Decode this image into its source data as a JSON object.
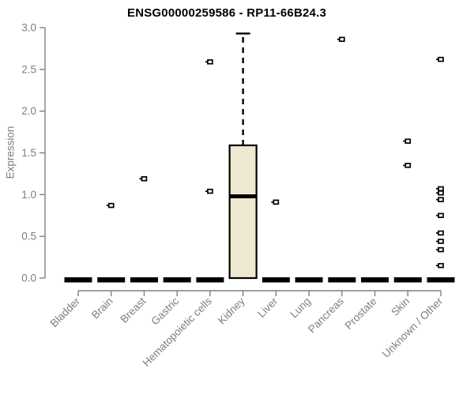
{
  "chart_data": {
    "type": "boxplot",
    "title": "ENSG00000259586 - RP11-66B24.3",
    "ylabel": "Expression",
    "xlabel": "",
    "ylim": [
      0,
      3
    ],
    "y_ticks": [
      "0.0",
      "0.5",
      "1.0",
      "1.5",
      "2.0",
      "2.5",
      "3.0"
    ],
    "grid": "off",
    "categories": [
      "Bladder",
      "Brain",
      "Breast",
      "Gastric",
      "Hematopoietic cells",
      "Kidney",
      "Liver",
      "Lung",
      "Pancreas",
      "Prostate",
      "Skin",
      "Unknown / Other"
    ],
    "boxes": [
      {
        "category": "Bladder",
        "q1": 0,
        "median": 0,
        "q3": 0,
        "whisker_low": 0,
        "whisker_high": 0,
        "outliers": []
      },
      {
        "category": "Brain",
        "q1": 0,
        "median": 0,
        "q3": 0,
        "whisker_low": 0,
        "whisker_high": 0,
        "outliers": [
          0.87
        ]
      },
      {
        "category": "Breast",
        "q1": 0,
        "median": 0,
        "q3": 0,
        "whisker_low": 0,
        "whisker_high": 0,
        "outliers": [
          1.19
        ]
      },
      {
        "category": "Gastric",
        "q1": 0,
        "median": 0,
        "q3": 0,
        "whisker_low": 0,
        "whisker_high": 0,
        "outliers": []
      },
      {
        "category": "Hematopoietic cells",
        "q1": 0,
        "median": 0,
        "q3": 0,
        "whisker_low": 0,
        "whisker_high": 0,
        "outliers": [
          2.59,
          1.04
        ]
      },
      {
        "category": "Kidney",
        "q1": 0,
        "median": 0.98,
        "q3": 1.59,
        "whisker_low": 0,
        "whisker_high": 2.93,
        "outliers": []
      },
      {
        "category": "Liver",
        "q1": 0,
        "median": 0,
        "q3": 0,
        "whisker_low": 0,
        "whisker_high": 0,
        "outliers": [
          0.91
        ]
      },
      {
        "category": "Lung",
        "q1": 0,
        "median": 0,
        "q3": 0,
        "whisker_low": 0,
        "whisker_high": 0,
        "outliers": []
      },
      {
        "category": "Pancreas",
        "q1": 0,
        "median": 0,
        "q3": 0,
        "whisker_low": 0,
        "whisker_high": 0,
        "outliers": [
          2.86
        ]
      },
      {
        "category": "Prostate",
        "q1": 0,
        "median": 0,
        "q3": 0,
        "whisker_low": 0,
        "whisker_high": 0,
        "outliers": []
      },
      {
        "category": "Skin",
        "q1": 0,
        "median": 0,
        "q3": 0,
        "whisker_low": 0,
        "whisker_high": 0,
        "outliers": [
          1.64,
          1.35
        ]
      },
      {
        "category": "Unknown / Other",
        "q1": 0,
        "median": 0,
        "q3": 0,
        "whisker_low": 0,
        "whisker_high": 0,
        "outliers": [
          2.62,
          1.07,
          1.02,
          0.94,
          0.75,
          0.54,
          0.44,
          0.34,
          0.15
        ]
      }
    ],
    "colors": {
      "box_fill": "#EDE8CF",
      "box_border": "#000000",
      "axis": "#808080",
      "tick_label": "#7e7e7e",
      "title": "#000000",
      "background": "#ffffff"
    },
    "legend": "none"
  }
}
